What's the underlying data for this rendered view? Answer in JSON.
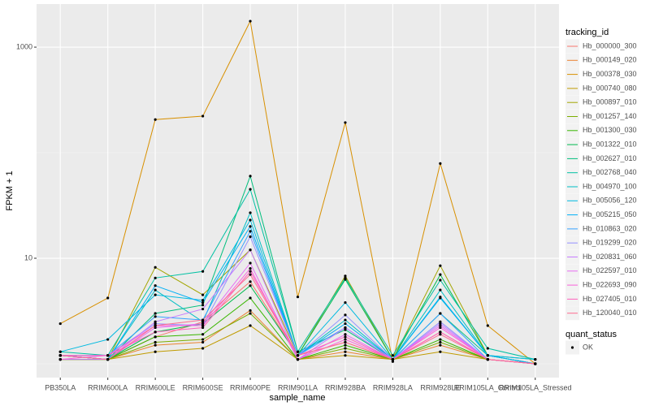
{
  "chart_data": {
    "type": "line",
    "x_label": "sample_name",
    "y_label": "FPKM + 1",
    "log_y": true,
    "grid": true,
    "categories": [
      "PB350LA",
      "RRIM600LA",
      "RRIM600LE",
      "RRIM600SE",
      "RRIM600PE",
      "RRIM901LA",
      "RRIM928BA",
      "RRIM928LA",
      "RRIM928LE",
      "RRIM105LA_Control",
      "RRIM105LA_Stressed"
    ],
    "ylim": [
      0.74,
      2560
    ],
    "yticks": [
      10,
      1000
    ],
    "legend_title": "tracking_id",
    "legend_position": "right",
    "point_legend": {
      "title": "quant_status",
      "labels": [
        "OK"
      ],
      "color": "#000000"
    },
    "series": [
      {
        "name": "Hb_000000_300",
        "color": "#F8766D",
        "values": [
          1.2,
          1.1,
          1.8,
          2.5,
          6,
          1.2,
          1.6,
          1.1,
          2.0,
          1.1,
          1.0
        ]
      },
      {
        "name": "Hb_000149_020",
        "color": "#EA8331",
        "values": [
          1.1,
          1.1,
          1.5,
          1.6,
          3.2,
          1.1,
          1.3,
          1.1,
          1.5,
          1.1,
          1.0
        ]
      },
      {
        "name": "Hb_000378_030",
        "color": "#D89000",
        "values": [
          2.4,
          4.2,
          206,
          222,
          1763,
          4.3,
          193,
          1.05,
          79,
          2.3,
          1.0
        ]
      },
      {
        "name": "Hb_000740_080",
        "color": "#C09B00",
        "values": [
          1.1,
          1.1,
          1.3,
          1.4,
          2.3,
          1.1,
          1.2,
          1.1,
          1.3,
          1.1,
          1.0
        ]
      },
      {
        "name": "Hb_000897_010",
        "color": "#A3A500",
        "values": [
          1.2,
          1.1,
          8.2,
          4.5,
          12,
          1.2,
          6.8,
          1.1,
          8.5,
          1.2,
          1.0
        ]
      },
      {
        "name": "Hb_001257_140",
        "color": "#7CAE00",
        "values": [
          1.1,
          1.1,
          1.6,
          1.7,
          3.0,
          1.1,
          1.4,
          1.1,
          1.6,
          1.1,
          1.0
        ]
      },
      {
        "name": "Hb_001300_030",
        "color": "#39B600",
        "values": [
          1.1,
          1.1,
          1.8,
          1.9,
          4.2,
          1.1,
          1.5,
          1.1,
          1.7,
          1.1,
          1.0
        ]
      },
      {
        "name": "Hb_001322_010",
        "color": "#00BB4E",
        "values": [
          1.2,
          1.1,
          2.0,
          2.4,
          5.5,
          1.2,
          6.3,
          1.1,
          7.0,
          1.2,
          1.0
        ]
      },
      {
        "name": "Hb_002627_010",
        "color": "#00BF7D",
        "values": [
          1.2,
          1.1,
          3.0,
          3.6,
          60,
          1.3,
          2.1,
          1.1,
          3.0,
          1.2,
          1.1
        ]
      },
      {
        "name": "Hb_002768_040",
        "color": "#00C1A3",
        "values": [
          1.3,
          1.2,
          6.5,
          7.5,
          45,
          1.3,
          6.5,
          1.2,
          6.2,
          1.4,
          1.1
        ]
      },
      {
        "name": "Hb_004970_100",
        "color": "#00BFC4",
        "values": [
          1.2,
          1.1,
          5.0,
          2.5,
          27,
          1.2,
          2.6,
          1.1,
          5.0,
          1.2,
          1.0
        ]
      },
      {
        "name": "Hb_005056_120",
        "color": "#00BAE0",
        "values": [
          1.3,
          1.7,
          4.5,
          4.0,
          23,
          1.2,
          3.8,
          1.1,
          4.2,
          1.2,
          1.1
        ]
      },
      {
        "name": "Hb_005215_050",
        "color": "#00B0F6",
        "values": [
          1.2,
          1.1,
          5.5,
          3.8,
          20,
          1.2,
          2.4,
          1.1,
          4.3,
          1.2,
          1.0
        ]
      },
      {
        "name": "Hb_010863_020",
        "color": "#35A2FF",
        "values": [
          1.2,
          1.2,
          2.8,
          2.6,
          18,
          1.2,
          2.2,
          1.1,
          3.0,
          1.1,
          1.0
        ]
      },
      {
        "name": "Hb_019299_020",
        "color": "#9590FF",
        "values": [
          1.2,
          1.2,
          2.4,
          2.3,
          16,
          1.2,
          2.9,
          1.1,
          2.5,
          1.1,
          1.0
        ]
      },
      {
        "name": "Hb_020831_060",
        "color": "#C77CFF",
        "values": [
          1.1,
          1.1,
          2.5,
          3.3,
          12,
          1.1,
          2.2,
          1.1,
          2.4,
          1.1,
          1.0
        ]
      },
      {
        "name": "Hb_022597_010",
        "color": "#E76BF3",
        "values": [
          1.2,
          1.1,
          2.2,
          2.4,
          9,
          1.1,
          1.9,
          1.1,
          2.3,
          1.1,
          1.0
        ]
      },
      {
        "name": "Hb_022693_090",
        "color": "#FA62DB",
        "values": [
          1.1,
          1.2,
          2.3,
          2.3,
          8,
          1.1,
          1.7,
          1.1,
          2.2,
          1.1,
          1.0
        ]
      },
      {
        "name": "Hb_027405_010",
        "color": "#FF62BC",
        "values": [
          1.2,
          1.2,
          2.0,
          2.2,
          7.5,
          1.2,
          1.8,
          1.1,
          2.0,
          1.1,
          1.0
        ]
      },
      {
        "name": "Hb_120040_010",
        "color": "#FF6C91",
        "values": [
          1.2,
          1.1,
          2.3,
          2.6,
          7,
          1.2,
          1.6,
          1.1,
          1.9,
          1.1,
          1.0
        ]
      }
    ]
  }
}
